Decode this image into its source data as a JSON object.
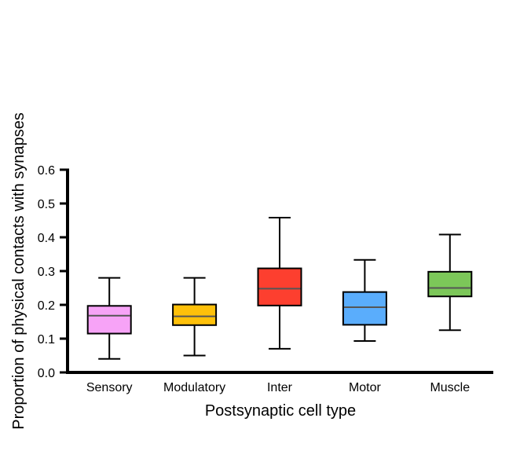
{
  "chart_data": {
    "type": "box",
    "title": "",
    "xlabel": "Postsynaptic cell type",
    "ylabel": "Proportion of physical contacts with synapses",
    "ylim": [
      0,
      0.6
    ],
    "yticks": [
      0,
      0.1,
      0.2,
      0.3,
      0.4,
      0.5,
      0.6
    ],
    "ytick_labels": [
      "0.0",
      "0.1",
      "0.2",
      "0.3",
      "0.4",
      "0.5",
      "0.6"
    ],
    "grid": false,
    "legend": "none",
    "categories": [
      "Sensory",
      "Modulatory",
      "Inter",
      "Motor",
      "Muscle"
    ],
    "boxes": [
      {
        "category": "Sensory",
        "whisker_low": 0.04,
        "q1": 0.115,
        "median": 0.168,
        "q3": 0.197,
        "whisker_high": 0.28,
        "color": "#f7a3f7"
      },
      {
        "category": "Modulatory",
        "whisker_low": 0.05,
        "q1": 0.14,
        "median": 0.166,
        "q3": 0.201,
        "whisker_high": 0.28,
        "color": "#ffc10a"
      },
      {
        "category": "Inter",
        "whisker_low": 0.07,
        "q1": 0.198,
        "median": 0.248,
        "q3": 0.308,
        "whisker_high": 0.458,
        "color": "#fd3f2f"
      },
      {
        "category": "Motor",
        "whisker_low": 0.093,
        "q1": 0.141,
        "median": 0.193,
        "q3": 0.238,
        "whisker_high": 0.333,
        "color": "#5aadfc"
      },
      {
        "category": "Muscle",
        "whisker_low": 0.125,
        "q1": 0.225,
        "median": 0.25,
        "q3": 0.298,
        "whisker_high": 0.408,
        "color": "#7cc759"
      }
    ],
    "median_color": "#555555",
    "outline_color": "#000000"
  }
}
